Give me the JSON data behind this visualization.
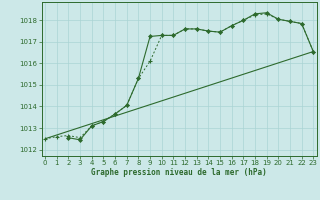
{
  "bg_color": "#cce8e8",
  "grid_color": "#aad4d4",
  "line_color": "#2d6a2d",
  "title": "Graphe pression niveau de la mer (hPa)",
  "xlim": [
    -0.3,
    23.3
  ],
  "ylim": [
    1011.7,
    1018.85
  ],
  "yticks": [
    1012,
    1013,
    1014,
    1015,
    1016,
    1017,
    1018
  ],
  "xticks": [
    0,
    1,
    2,
    3,
    4,
    5,
    6,
    7,
    8,
    9,
    10,
    11,
    12,
    13,
    14,
    15,
    16,
    17,
    18,
    19,
    20,
    21,
    22,
    23
  ],
  "line1_x": [
    0,
    1,
    2,
    3,
    4,
    5,
    6,
    7,
    8,
    9,
    10,
    11,
    12,
    13,
    14,
    15,
    16,
    17,
    18,
    19,
    20,
    21,
    22,
    23
  ],
  "line1_y": [
    1012.5,
    1012.6,
    1012.65,
    1012.55,
    1013.1,
    1013.3,
    1013.65,
    1014.05,
    1015.3,
    1016.1,
    1017.3,
    1017.3,
    1017.6,
    1017.6,
    1017.5,
    1017.45,
    1017.75,
    1018.0,
    1018.25,
    1018.3,
    1018.05,
    1017.95,
    1017.85,
    1016.55
  ],
  "line2_x": [
    2,
    3,
    4,
    5,
    6,
    7,
    8,
    9,
    10,
    11,
    12,
    13,
    14,
    15,
    16,
    17,
    18,
    19,
    20,
    21,
    22,
    23
  ],
  "line2_y": [
    1012.55,
    1012.45,
    1013.1,
    1013.3,
    1013.65,
    1014.05,
    1015.3,
    1017.25,
    1017.3,
    1017.3,
    1017.6,
    1017.6,
    1017.5,
    1017.45,
    1017.75,
    1018.0,
    1018.3,
    1018.35,
    1018.05,
    1017.95,
    1017.85,
    1016.55
  ],
  "line3_x": [
    0,
    23
  ],
  "line3_y": [
    1012.5,
    1016.55
  ]
}
